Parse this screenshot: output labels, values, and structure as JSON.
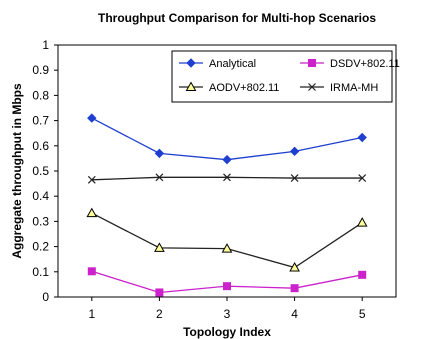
{
  "chart_data": {
    "type": "line",
    "title": "Throughput Comparison for  Multi-hop Scenarios",
    "xlabel": "Topology Index",
    "ylabel": "Aggregate throughput in Mbps",
    "x": [
      1,
      2,
      3,
      4,
      5
    ],
    "ylim": [
      0,
      1
    ],
    "yticks": [
      "0",
      "0.1",
      "0.2",
      "0.3",
      "0.4",
      "0.5",
      "0.6",
      "0.7",
      "0.8",
      "0.9",
      "1"
    ],
    "xticks": [
      "1",
      "2",
      "3",
      "4",
      "5"
    ],
    "grid": false,
    "legend_position": "top-right",
    "series": [
      {
        "name": "Analytical",
        "values": [
          0.71,
          0.57,
          0.545,
          0.578,
          0.633
        ],
        "color": "#1F3FD0",
        "marker": "diamond"
      },
      {
        "name": "DSDV+802.11",
        "values": [
          0.102,
          0.018,
          0.043,
          0.035,
          0.088
        ],
        "color": "#CC22CC",
        "marker": "square"
      },
      {
        "name": "AODV+802.11",
        "values": [
          0.333,
          0.195,
          0.192,
          0.117,
          0.295
        ],
        "color": "#222222",
        "marker": "triangle"
      },
      {
        "name": "IRMA-MH",
        "values": [
          0.465,
          0.475,
          0.475,
          0.472,
          0.472
        ],
        "color": "#222222",
        "marker": "x"
      }
    ]
  }
}
